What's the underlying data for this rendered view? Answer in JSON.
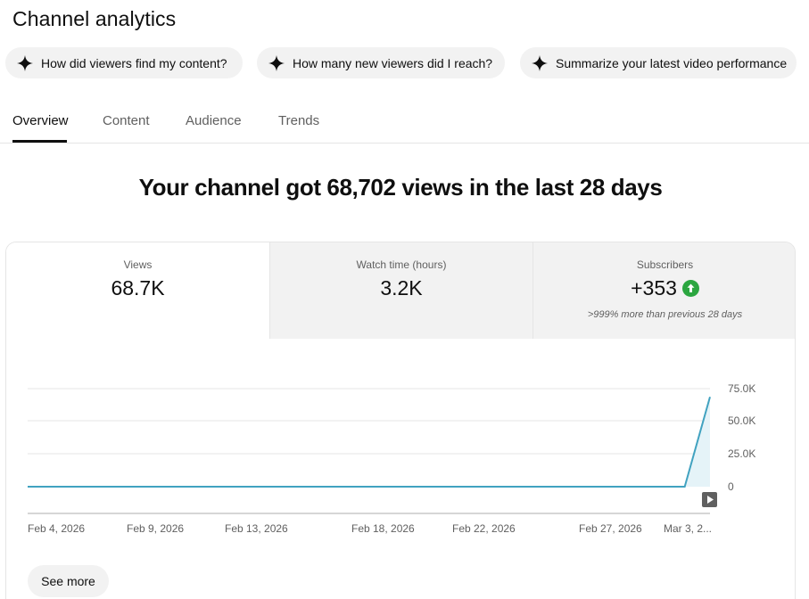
{
  "page": {
    "title": "Channel analytics"
  },
  "chips": [
    {
      "label": "How did viewers find my content?",
      "icon": "sparkle-icon"
    },
    {
      "label": "How many new viewers did I reach?",
      "icon": "sparkle-icon"
    },
    {
      "label": "Summarize your latest video performance",
      "icon": "sparkle-icon"
    }
  ],
  "tabs": [
    {
      "label": "Overview",
      "active": true
    },
    {
      "label": "Content",
      "active": false
    },
    {
      "label": "Audience",
      "active": false
    },
    {
      "label": "Trends",
      "active": false
    }
  ],
  "headline": "Your channel got 68,702 views in the last 28 days",
  "metrics": [
    {
      "label": "Views",
      "value": "68.7K"
    },
    {
      "label": "Watch time (hours)",
      "value": "3.2K"
    },
    {
      "label": "Subscribers",
      "value": "+353",
      "note": ">999% more than previous 28 days",
      "trend_icon": "arrow-up-circle-icon",
      "trend_color": "#2ba640"
    }
  ],
  "chart_data": {
    "type": "area",
    "x_ticks": [
      "Feb 4, 2026",
      "Feb 9, 2026",
      "Feb 13, 2026",
      "Feb 18, 2026",
      "Feb 22, 2026",
      "Feb 27, 2026",
      "Mar 3, 2..."
    ],
    "y_ticks": [
      "75.0K",
      "50.0K",
      "25.0K",
      "0"
    ],
    "ylim": [
      0,
      75000
    ],
    "series": [
      {
        "x": [
          "Feb 4, 2026",
          "Mar 2, 2026",
          "Mar 3, 2026"
        ],
        "values": [
          0,
          0,
          68702
        ]
      }
    ],
    "line_color": "#41a2c0",
    "fill_color": "#e5f3f8",
    "grid": true,
    "y_axis_side": "right"
  },
  "see_more_label": "See more",
  "colors": {
    "accent": "#0f0f0f",
    "muted": "#606060",
    "chip_bg": "#f2f2f2"
  }
}
